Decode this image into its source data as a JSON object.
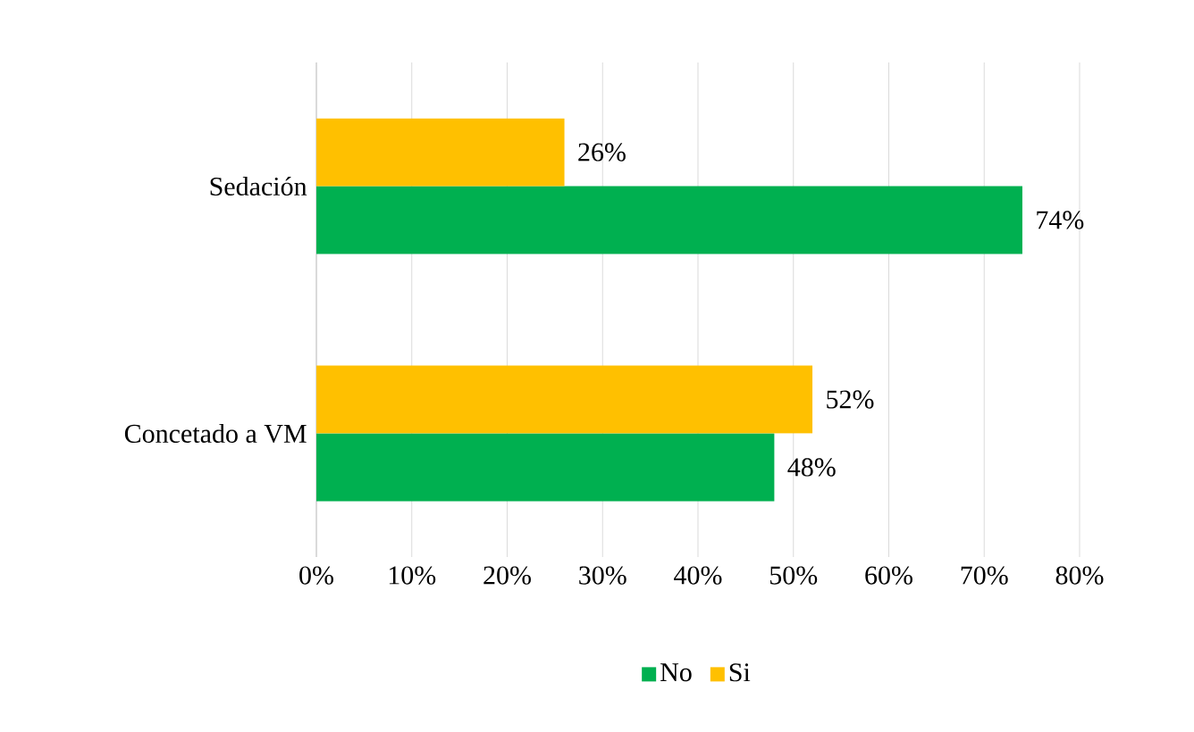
{
  "chart_data": {
    "type": "bar",
    "orientation": "horizontal",
    "categories": [
      "Sedación",
      "Concetado a VM"
    ],
    "series": [
      {
        "name": "Si",
        "color": "#ffc000",
        "values": [
          26,
          52
        ],
        "value_labels": [
          "26%",
          "52%"
        ]
      },
      {
        "name": "No",
        "color": "#00b050",
        "values": [
          74,
          48
        ],
        "value_labels": [
          "74%",
          "48%"
        ]
      }
    ],
    "xlim": [
      0,
      80
    ],
    "xticks": [
      {
        "value": 0,
        "label": "0%"
      },
      {
        "value": 10,
        "label": "10%"
      },
      {
        "value": 20,
        "label": "20%"
      },
      {
        "value": 30,
        "label": "30%"
      },
      {
        "value": 40,
        "label": "40%"
      },
      {
        "value": 50,
        "label": "50%"
      },
      {
        "value": 60,
        "label": "60%"
      },
      {
        "value": 70,
        "label": "70%"
      },
      {
        "value": 80,
        "label": "80%"
      }
    ],
    "grid": "x",
    "legend": "bottom"
  }
}
